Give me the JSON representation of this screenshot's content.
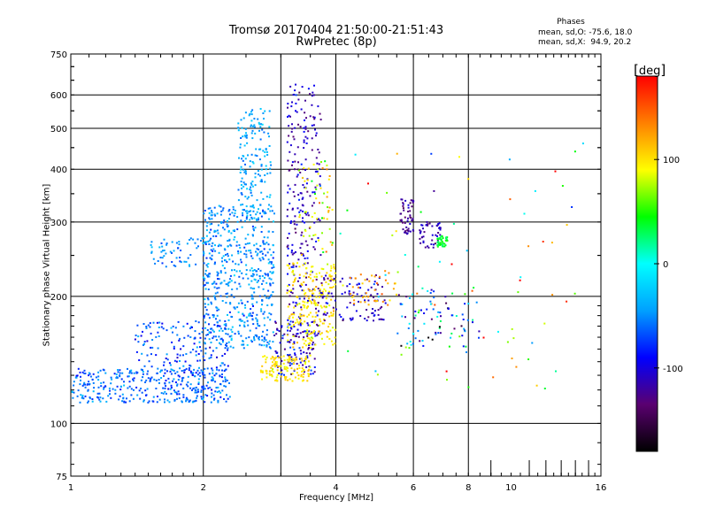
{
  "title": {
    "line1": "Tromsø 20170404 21:50:00-21:51:43",
    "line2": "RwPretec (8p)"
  },
  "phases": {
    "heading": "Phases",
    "o_line": "mean, sd,O: -75.6, 18.0",
    "x_line": "mean, sd,X:  94.9, 20.2"
  },
  "colorbar": {
    "unit": "deg",
    "ticks": [
      "100",
      "0",
      "-100"
    ],
    "tick_values": [
      100,
      0,
      -100
    ],
    "range": [
      -180,
      180
    ],
    "colors": [
      "#000000",
      "#5a0070",
      "#0000ff",
      "#00a0ff",
      "#00ffff",
      "#00ff00",
      "#ffff00",
      "#ff8000",
      "#ff0000"
    ]
  },
  "chart_data": {
    "type": "scatter",
    "title": "Tromsø 20170404 21:50:00-21:51:43 RwPretec (8p)",
    "xlabel": "Frequency [MHz]",
    "ylabel": "Stationary phase Virtual Height [km]",
    "xscale": "log",
    "yscale": "log",
    "xlim": [
      1,
      16
    ],
    "ylim": [
      75,
      750
    ],
    "x_ticks": [
      "1",
      "2",
      "4",
      "6",
      "8",
      "10",
      "16"
    ],
    "x_tick_values": [
      1,
      2,
      4,
      6,
      8,
      10,
      16
    ],
    "x_gridlines": [
      2,
      3,
      4,
      6,
      8
    ],
    "x_minor_ticks": [
      9,
      11,
      12,
      13,
      14,
      15
    ],
    "y_ticks": [
      "75",
      "100",
      "200",
      "300",
      "400",
      "500",
      "600",
      "750"
    ],
    "y_tick_values": [
      75,
      100,
      200,
      300,
      400,
      500,
      600,
      750
    ],
    "y_gridlines": [
      100,
      200,
      300,
      400,
      500,
      600
    ],
    "grid": true,
    "color_encoding": "phase [deg]",
    "clusters": [
      {
        "fmin": 1.0,
        "fmax": 2.3,
        "hmin": 112,
        "hmax": 135,
        "phase": -60,
        "sd": 15,
        "count": 380
      },
      {
        "fmin": 1.4,
        "fmax": 2.3,
        "hmin": 130,
        "hmax": 175,
        "phase": -70,
        "sd": 20,
        "count": 160
      },
      {
        "fmin": 2.0,
        "fmax": 2.9,
        "hmin": 150,
        "hmax": 330,
        "phase": -50,
        "sd": 15,
        "count": 550
      },
      {
        "fmin": 2.4,
        "fmax": 2.85,
        "hmin": 300,
        "hmax": 560,
        "phase": -40,
        "sd": 12,
        "count": 170
      },
      {
        "fmin": 1.5,
        "fmax": 2.1,
        "hmin": 235,
        "hmax": 275,
        "phase": -50,
        "sd": 12,
        "count": 70
      },
      {
        "fmin": 2.9,
        "fmax": 3.6,
        "hmin": 130,
        "hmax": 175,
        "phase": -100,
        "sd": 20,
        "count": 110
      },
      {
        "fmin": 3.1,
        "fmax": 3.7,
        "hmin": 160,
        "hmax": 640,
        "phase": -110,
        "sd": 18,
        "count": 260
      },
      {
        "fmin": 2.7,
        "fmax": 3.5,
        "hmin": 126,
        "hmax": 145,
        "phase": 100,
        "sd": 10,
        "count": 130
      },
      {
        "fmin": 3.1,
        "fmax": 4.0,
        "hmin": 150,
        "hmax": 240,
        "phase": 100,
        "sd": 12,
        "count": 230
      },
      {
        "fmin": 3.3,
        "fmax": 3.95,
        "hmin": 250,
        "hmax": 420,
        "phase": 90,
        "sd": 25,
        "count": 60
      },
      {
        "fmin": 3.7,
        "fmax": 5.2,
        "hmin": 175,
        "hmax": 225,
        "phase": -110,
        "sd": 15,
        "count": 100
      },
      {
        "fmin": 4.3,
        "fmax": 5.5,
        "hmin": 190,
        "hmax": 230,
        "phase": 120,
        "sd": 15,
        "count": 40
      },
      {
        "fmin": 5.6,
        "fmax": 6.0,
        "hmin": 280,
        "hmax": 340,
        "phase": -120,
        "sd": 12,
        "count": 50
      },
      {
        "fmin": 6.2,
        "fmax": 7.0,
        "hmin": 260,
        "hmax": 300,
        "phase": -115,
        "sd": 12,
        "count": 45
      },
      {
        "fmin": 6.8,
        "fmax": 7.2,
        "hmin": 262,
        "hmax": 278,
        "phase": 40,
        "sd": 10,
        "count": 40
      },
      {
        "fmin": 5.5,
        "fmax": 8.5,
        "hmin": 150,
        "hmax": 210,
        "phase": -60,
        "sd": 80,
        "count": 90
      },
      {
        "fmin": 4.0,
        "fmax": 15.0,
        "hmin": 120,
        "hmax": 500,
        "phase": 60,
        "sd": 80,
        "count": 70
      }
    ]
  }
}
